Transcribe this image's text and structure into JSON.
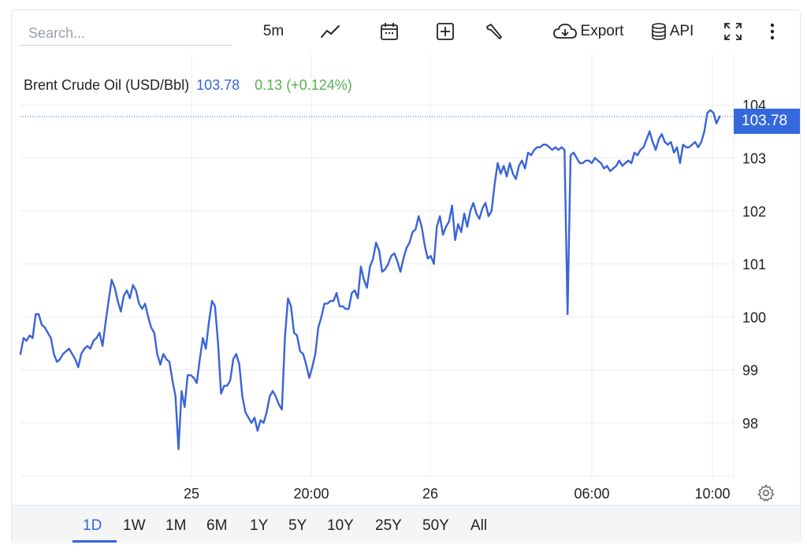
{
  "search": {
    "placeholder": "Search..."
  },
  "toolbar": {
    "interval_label": "5m",
    "export_label": "Export",
    "api_label": "API"
  },
  "legend": {
    "name": "Brent Crude Oil (USD/Bbl)",
    "price": "103.78",
    "change": "0.13 (+0.124%)"
  },
  "price_tag": "103.78",
  "colors": {
    "line": "#3a63d8",
    "accent": "#3565d6",
    "positive": "#53b34e",
    "grid": "#e8ecf1"
  },
  "range_buttons": [
    "1D",
    "1W",
    "1M",
    "6M",
    "1Y",
    "5Y",
    "10Y",
    "25Y",
    "50Y",
    "All"
  ],
  "chart_data": {
    "type": "line",
    "title": "Brent Crude Oil (USD/Bbl)",
    "x_tick_labels": [
      "25",
      "20:00",
      "26",
      "06:00",
      "10:00"
    ],
    "y_ticks": [
      98,
      99,
      100,
      101,
      102,
      103,
      104
    ],
    "ylim": [
      97.0,
      104.15
    ],
    "last_value": 103.78,
    "grid": true,
    "series": [
      {
        "values": [
          99.3,
          99.6,
          99.55,
          99.65,
          99.6,
          100.05,
          100.05,
          99.85,
          99.8,
          99.7,
          99.6,
          99.3,
          99.15,
          99.2,
          99.3,
          99.35,
          99.4,
          99.3,
          99.2,
          99.05,
          99.3,
          99.4,
          99.45,
          99.4,
          99.55,
          99.6,
          99.7,
          99.45,
          99.9,
          100.3,
          100.7,
          100.55,
          100.3,
          100.1,
          100.4,
          100.5,
          100.35,
          100.6,
          100.5,
          100.25,
          100.15,
          100.25,
          100,
          99.8,
          99.7,
          99.3,
          99.1,
          99.3,
          99.2,
          99.15,
          98.8,
          98.5,
          97.5,
          98.6,
          98.3,
          98.9,
          98.9,
          98.85,
          98.75,
          99.2,
          99.6,
          99.4,
          99.9,
          100.3,
          100.2,
          99.5,
          98.55,
          98.7,
          98.7,
          98.8,
          99.2,
          99.3,
          99.1,
          98.5,
          98.2,
          98.1,
          98.0,
          98.1,
          97.85,
          98.05,
          98.0,
          98.2,
          98.5,
          98.6,
          98.5,
          98.35,
          98.25,
          99.6,
          100.35,
          100.2,
          99.7,
          99.65,
          99.35,
          99.3,
          99.1,
          98.85,
          99.05,
          99.3,
          99.8,
          100.0,
          100.25,
          100.25,
          100.3,
          100.3,
          100.45,
          100.2,
          100.2,
          100.15,
          100.15,
          100.45,
          100.5,
          100.35,
          100.95,
          100.7,
          100.55,
          100.95,
          101.1,
          101.4,
          101.25,
          100.85,
          100.9,
          101.0,
          101.15,
          101.2,
          101.05,
          100.85,
          101.1,
          101.3,
          101.4,
          101.6,
          101.65,
          101.9,
          101.7,
          101.35,
          101.1,
          101.15,
          101.0,
          101.7,
          101.9,
          101.55,
          101.7,
          101.8,
          102.1,
          101.45,
          101.75,
          101.6,
          101.95,
          101.7,
          102.0,
          102.15,
          101.95,
          101.85,
          102.05,
          102.15,
          101.9,
          102.0,
          102.5,
          102.9,
          102.7,
          102.85,
          102.65,
          102.9,
          102.7,
          102.6,
          102.85,
          102.95,
          102.8,
          103.1,
          103.05,
          103.15,
          103.2,
          103.2,
          103.25,
          103.25,
          103.2,
          103.15,
          103.2,
          103.15,
          103.2,
          103.15,
          100.05,
          103.05,
          103.1,
          103.0,
          102.9,
          102.9,
          102.95,
          102.95,
          102.9,
          103.0,
          102.95,
          102.9,
          102.8,
          102.85,
          102.75,
          102.8,
          102.85,
          102.95,
          102.85,
          102.9,
          102.95,
          102.9,
          103.1,
          103.05,
          103.15,
          103.2,
          103.35,
          103.5,
          103.3,
          103.15,
          103.35,
          103.45,
          103.3,
          103.25,
          103.3,
          103.1,
          103.2,
          102.9,
          103.25,
          103.2,
          103.2,
          103.25,
          103.3,
          103.2,
          103.3,
          103.5,
          103.85,
          103.9,
          103.85,
          103.65,
          103.78
        ]
      }
    ]
  }
}
